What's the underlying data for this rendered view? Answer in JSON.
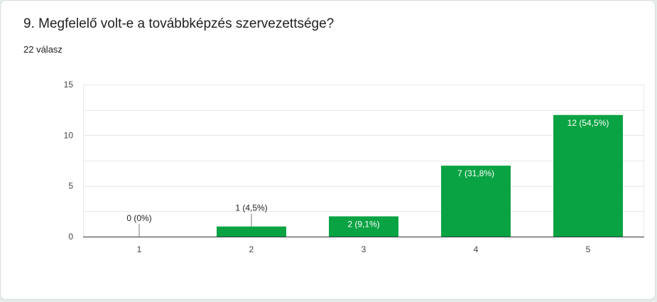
{
  "question": {
    "title": "9. Megfelelő volt-e a továbbképzés szervezettsége?",
    "response_count": "22 válasz"
  },
  "colors": {
    "bar": "#0aa343",
    "grid": "#e8e8e8",
    "axis": "#333333",
    "label_inside": "#ffffff",
    "label_outside": "#222222"
  },
  "chart_data": {
    "type": "bar",
    "title": "",
    "xlabel": "",
    "ylabel": "",
    "categories": [
      "1",
      "2",
      "3",
      "4",
      "5"
    ],
    "values": [
      0,
      1,
      2,
      7,
      12
    ],
    "data_labels": [
      "0 (0%)",
      "1 (4,5%)",
      "2 (9,1%)",
      "7 (31,8%)",
      "12 (54,5%)"
    ],
    "ylim": [
      0,
      15
    ],
    "yticks": [
      0,
      5,
      10,
      15
    ],
    "grid": true
  }
}
